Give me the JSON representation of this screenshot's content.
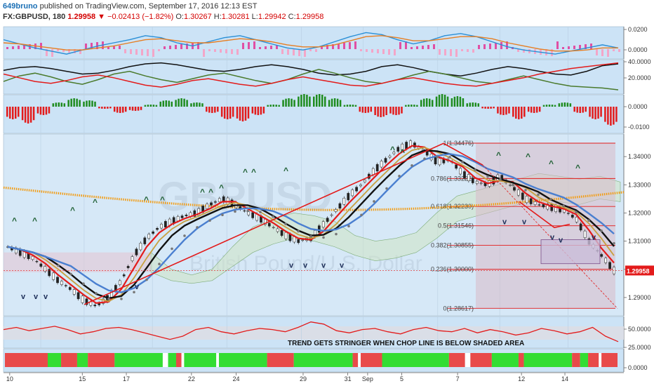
{
  "header": {
    "author": "649bruno",
    "published": "published on TradingView.com, September 17, 2016 12:13 EST",
    "symbol": "FX:GBPUSD, 180",
    "last": "1.29958",
    "change_arrow": "▼",
    "change": "−0.02413 (−1.82%)",
    "o_label": "O:",
    "o_value": "1.30267",
    "h_label": "H:",
    "h_value": "1.30281",
    "l_label": "L:",
    "l_value": "1.29942",
    "c_label": "C:",
    "c_value": "1.29958"
  },
  "watermark": {
    "symbol": "GBPUSD",
    "name": "British Pound/U.S. Dollar"
  },
  "colors": {
    "panel_bg": "#cce3f6",
    "price_bg": "#d6e8f7",
    "red": "#e31b1b",
    "green": "#1f8c1f",
    "black": "#111111",
    "orange": "#f39c12",
    "blue": "#4a7fd0",
    "fib_shade": "#d9b9c9"
  },
  "chart_data": [
    {
      "panel": "oscillator-1",
      "type": "line",
      "series": [
        {
          "color": "#2a8fd6",
          "values": [
            0.012,
            0.008,
            0.004,
            0.001,
            -0.002,
            0.002,
            0.006,
            0.009,
            0.012,
            0.016,
            0.014,
            0.009,
            0.006,
            0.01,
            0.014,
            0.016,
            0.012,
            0.008,
            0.004,
            0.002,
            0.005,
            0.01,
            0.015,
            0.019,
            0.017,
            0.012,
            0.008,
            0.011,
            0.016,
            0.018,
            0.015,
            0.01,
            0.005,
            0.002,
            0.0,
            -0.002,
            0.001,
            0.004,
            0.007,
            0.004
          ]
        },
        {
          "color": "#e67e22",
          "values": [
            0.009,
            0.008,
            0.006,
            0.004,
            0.002,
            0.002,
            0.004,
            0.006,
            0.009,
            0.012,
            0.013,
            0.011,
            0.009,
            0.009,
            0.011,
            0.013,
            0.012,
            0.01,
            0.007,
            0.005,
            0.005,
            0.007,
            0.011,
            0.015,
            0.016,
            0.014,
            0.011,
            0.011,
            0.013,
            0.015,
            0.015,
            0.013,
            0.009,
            0.006,
            0.003,
            0.001,
            0.001,
            0.002,
            0.004,
            0.004
          ]
        }
      ],
      "ticks": [
        "0.0200",
        "0.0000"
      ]
    },
    {
      "panel": "dmi",
      "type": "line",
      "series": [
        {
          "color": "#111111",
          "values": [
            34,
            37,
            38,
            36,
            33,
            30,
            31,
            34,
            38,
            41,
            42,
            40,
            37,
            34,
            33,
            35,
            38,
            40,
            38,
            35,
            31,
            29,
            30,
            33,
            38,
            40,
            37,
            33,
            30,
            28,
            31,
            35,
            38,
            36,
            33,
            30,
            29,
            33,
            39,
            41
          ]
        },
        {
          "color": "#4a7a2c",
          "values": [
            22,
            28,
            31,
            27,
            22,
            19,
            24,
            30,
            33,
            28,
            24,
            21,
            25,
            29,
            31,
            27,
            23,
            20,
            24,
            30,
            35,
            31,
            26,
            22,
            20,
            24,
            29,
            33,
            30,
            26,
            22,
            20,
            24,
            28,
            24,
            20,
            17,
            16,
            15,
            13
          ]
        },
        {
          "color": "#e31b1b",
          "values": [
            30,
            26,
            22,
            20,
            23,
            27,
            29,
            26,
            22,
            18,
            16,
            19,
            23,
            25,
            22,
            19,
            17,
            20,
            24,
            27,
            24,
            21,
            18,
            17,
            20,
            24,
            26,
            23,
            20,
            18,
            17,
            20,
            23,
            26,
            30,
            33,
            36,
            38,
            40,
            42
          ]
        }
      ],
      "ticks": [
        "40.0000",
        "20.0000"
      ]
    },
    {
      "panel": "histogram",
      "type": "bar",
      "values": [
        -0.006,
        -0.008,
        -0.004,
        0.002,
        0.004,
        0.003,
        -0.001,
        -0.003,
        -0.002,
        0.001,
        0.003,
        0.004,
        0.002,
        -0.003,
        -0.006,
        -0.007,
        -0.004,
        0.001,
        0.004,
        0.006,
        0.006,
        0.004,
        0.001,
        -0.003,
        -0.005,
        -0.004,
        0.001,
        0.004,
        0.006,
        0.005,
        0.002,
        -0.001,
        -0.004,
        -0.006,
        -0.003,
        0.001,
        0.002,
        -0.003,
        -0.006,
        -0.009
      ],
      "ticks": [
        "0.0000",
        "-0.0100"
      ]
    },
    {
      "panel": "price",
      "type": "line",
      "ylim": [
        1.2835,
        1.348
      ],
      "close": [
        1.308,
        1.306,
        1.304,
        1.3,
        1.296,
        1.293,
        1.289,
        1.287,
        1.29,
        1.296,
        1.305,
        1.311,
        1.315,
        1.317,
        1.319,
        1.32,
        1.323,
        1.325,
        1.323,
        1.32,
        1.318,
        1.315,
        1.312,
        1.31,
        1.311,
        1.316,
        1.321,
        1.326,
        1.33,
        1.335,
        1.339,
        1.343,
        1.3447,
        1.342,
        1.338,
        1.339,
        1.334,
        1.331,
        1.33,
        1.333,
        1.329,
        1.325,
        1.323,
        1.322,
        1.321,
        1.318,
        1.31,
        1.305,
        1.2996
      ],
      "ticks": [
        "1.34000",
        "1.33000",
        "1.32000",
        "1.31000",
        "1.30000",
        "1.29000"
      ],
      "last_price": "1.29958",
      "fib_levels": [
        {
          "label": "1(1.34476)",
          "value": 1.34476
        },
        {
          "label": "0.786(1.33222)",
          "value": 1.33222
        },
        {
          "label": "0.618(1.32230)",
          "value": 1.3223
        },
        {
          "label": "0.5(1.31546)",
          "value": 1.31546
        },
        {
          "label": "0.382(1.30855)",
          "value": 1.30855
        },
        {
          "label": "0.236(1.30000)",
          "value": 1.3
        },
        {
          "label": "0(1.28617)",
          "value": 1.28617
        }
      ]
    },
    {
      "panel": "chop",
      "type": "line",
      "values": [
        55,
        57,
        54,
        56,
        58,
        55,
        51,
        53,
        56,
        57,
        55,
        52,
        49,
        46,
        49,
        55,
        57,
        53,
        51,
        54,
        56,
        55,
        53,
        57,
        62,
        60,
        54,
        52,
        55,
        56,
        53,
        51,
        55,
        57,
        54,
        53,
        56,
        52,
        55,
        53,
        50,
        52,
        56,
        54,
        51,
        53,
        57,
        49,
        44
      ],
      "ticks": [
        "50.0000",
        "25.0000"
      ],
      "annotation": "TREND GETS STRINGER WHEN CHOP LINE IS BELOW SHADED AREA"
    },
    {
      "panel": "trend-bar",
      "type": "bar",
      "ticks": [
        "0.0000"
      ],
      "segments": [
        {
          "c": "red",
          "w": 16
        },
        {
          "c": "green",
          "w": 5
        },
        {
          "c": "red",
          "w": 6
        },
        {
          "c": "green",
          "w": 4
        },
        {
          "c": "red",
          "w": 10
        },
        {
          "c": "green",
          "w": 18
        },
        {
          "c": "white",
          "w": 2
        },
        {
          "c": "green",
          "w": 3
        },
        {
          "c": "red",
          "w": 2
        },
        {
          "c": "white",
          "w": 1
        },
        {
          "c": "green",
          "w": 12
        },
        {
          "c": "white",
          "w": 1
        },
        {
          "c": "green",
          "w": 18
        },
        {
          "c": "red",
          "w": 10
        },
        {
          "c": "green",
          "w": 22
        },
        {
          "c": "red",
          "w": 2
        },
        {
          "c": "white",
          "w": 1
        },
        {
          "c": "red",
          "w": 8
        },
        {
          "c": "green",
          "w": 25
        },
        {
          "c": "red",
          "w": 6
        },
        {
          "c": "white",
          "w": 2
        },
        {
          "c": "red",
          "w": 8
        },
        {
          "c": "green",
          "w": 10
        },
        {
          "c": "red",
          "w": 2
        },
        {
          "c": "green",
          "w": 18
        },
        {
          "c": "red",
          "w": 3
        },
        {
          "c": "green",
          "w": 3
        },
        {
          "c": "red",
          "w": 4
        },
        {
          "c": "white",
          "w": 1
        },
        {
          "c": "red",
          "w": 6
        }
      ]
    }
  ],
  "x_axis": {
    "labels": [
      {
        "text": "10",
        "f": 0.01
      },
      {
        "text": "15",
        "f": 0.127
      },
      {
        "text": "17",
        "f": 0.198
      },
      {
        "text": "22",
        "f": 0.303
      },
      {
        "text": "24",
        "f": 0.375
      },
      {
        "text": "29",
        "f": 0.483
      },
      {
        "text": "31",
        "f": 0.555
      },
      {
        "text": "Sep",
        "f": 0.587
      },
      {
        "text": "5",
        "f": 0.642
      },
      {
        "text": "7",
        "f": 0.732
      },
      {
        "text": "12",
        "f": 0.835
      },
      {
        "text": "14",
        "f": 0.905
      }
    ]
  }
}
